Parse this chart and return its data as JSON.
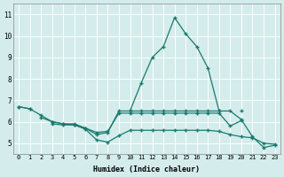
{
  "xlabel": "Humidex (Indice chaleur)",
  "background_color": "#d4ecec",
  "grid_color": "#ffffff",
  "line_color": "#1a7a6e",
  "xlim": [
    -0.5,
    23.5
  ],
  "ylim": [
    4.5,
    11.5
  ],
  "xticks": [
    0,
    1,
    2,
    3,
    4,
    5,
    6,
    7,
    8,
    9,
    10,
    11,
    12,
    13,
    14,
    15,
    16,
    17,
    18,
    19,
    20,
    21,
    22,
    23
  ],
  "yticks": [
    5,
    6,
    7,
    8,
    9,
    10,
    11
  ],
  "x_vals": [
    0,
    1,
    2,
    3,
    4,
    5,
    6,
    7,
    8,
    9,
    10,
    11,
    12,
    13,
    14,
    15,
    16,
    17,
    18,
    19,
    20,
    21,
    22,
    23
  ],
  "line1_y": [
    6.7,
    6.6,
    null,
    null,
    null,
    null,
    null,
    null,
    null,
    null,
    6.5,
    6.5,
    6.5,
    6.5,
    6.5,
    6.5,
    6.5,
    6.5,
    6.5,
    null,
    6.5,
    null,
    null,
    null
  ],
  "line2_y": [
    6.7,
    6.6,
    6.3,
    6.0,
    5.9,
    5.9,
    5.7,
    5.4,
    5.5,
    6.5,
    6.5,
    7.8,
    9.0,
    9.5,
    10.85,
    10.1,
    9.5,
    8.5,
    6.5,
    6.5,
    6.1,
    5.3,
    4.8,
    4.9
  ],
  "line3_y": [
    null,
    null,
    6.2,
    6.0,
    5.9,
    5.85,
    5.7,
    5.5,
    5.55,
    6.4,
    6.4,
    6.4,
    6.4,
    6.4,
    6.4,
    6.4,
    6.4,
    6.4,
    6.4,
    5.8,
    6.05,
    null,
    null,
    null
  ],
  "line4_y": [
    null,
    null,
    null,
    5.9,
    5.85,
    5.85,
    5.65,
    5.15,
    5.05,
    5.35,
    5.6,
    5.6,
    5.6,
    5.6,
    5.6,
    5.6,
    5.6,
    5.6,
    5.55,
    5.4,
    5.3,
    5.25,
    5.0,
    4.95
  ]
}
